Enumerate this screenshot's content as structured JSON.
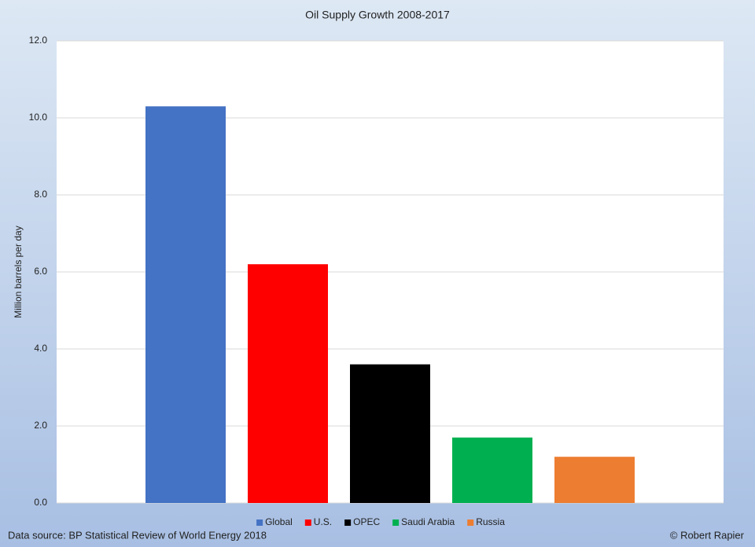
{
  "chart_data": {
    "type": "bar",
    "title": "Oil Supply Growth 2008-2017",
    "y_label": "Million barrels per day",
    "categories": [
      null
    ],
    "series": [
      {
        "name": "Global",
        "color": "#4472c4",
        "values": [
          10.3
        ]
      },
      {
        "name": "U.S.",
        "color": "#ff0000",
        "values": [
          6.2
        ]
      },
      {
        "name": "OPEC",
        "color": "#000000",
        "values": [
          3.6
        ]
      },
      {
        "name": "Saudi Arabia",
        "color": "#00b050",
        "values": [
          1.7
        ]
      },
      {
        "name": "Russia",
        "color": "#ed7d31",
        "values": [
          1.2
        ]
      }
    ],
    "ylim": [
      0,
      12
    ],
    "yticks": [
      {
        "value": 0,
        "label": "0.0"
      },
      {
        "value": 2,
        "label": "2.0"
      },
      {
        "value": 4,
        "label": "4.0"
      },
      {
        "value": 6,
        "label": "6.0"
      },
      {
        "value": 8,
        "label": "8.0"
      },
      {
        "value": 10,
        "label": "10.0"
      },
      {
        "value": 12,
        "label": "12.0"
      }
    ],
    "grid": true,
    "legend": "bottom",
    "source": "Data source: BP Statistical Review of World Energy 2018",
    "credit": "© Robert Rapier"
  }
}
